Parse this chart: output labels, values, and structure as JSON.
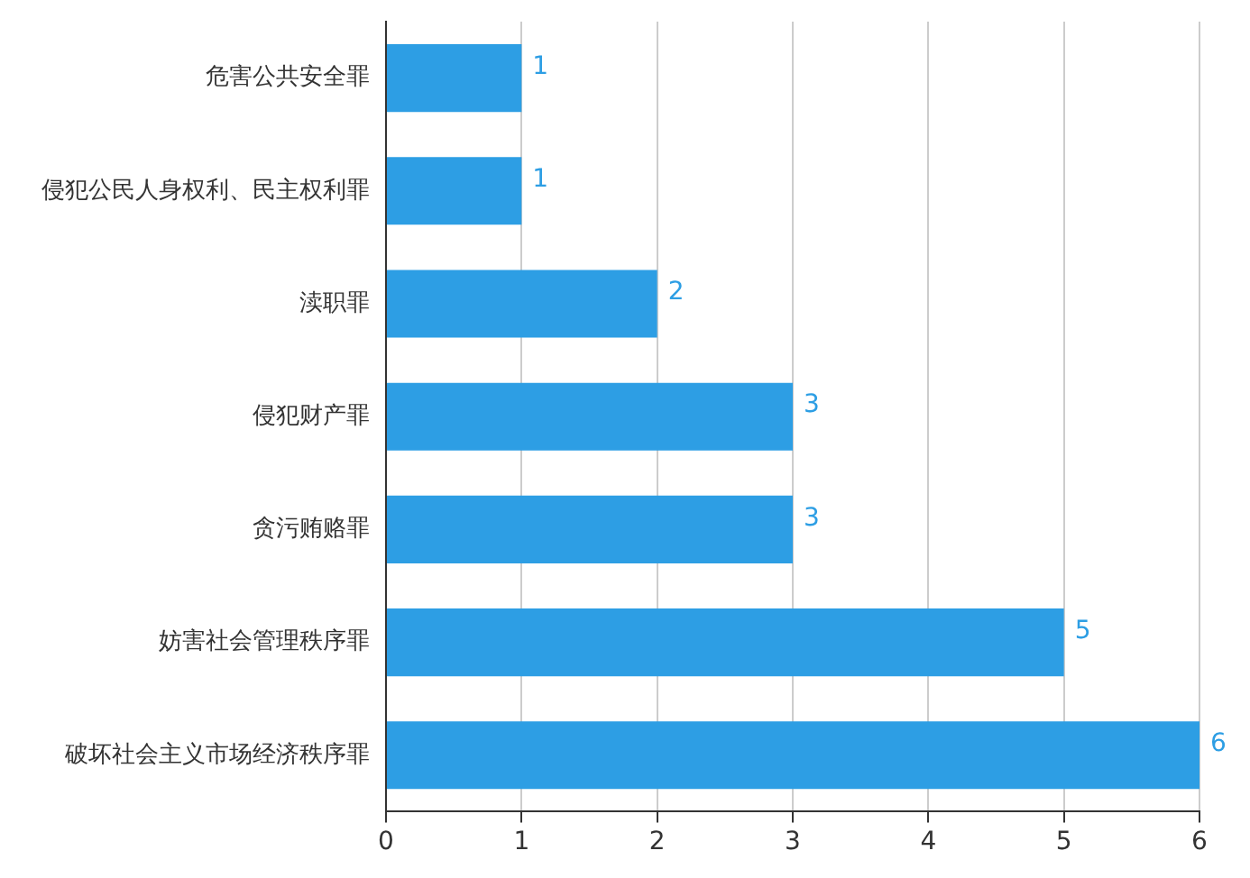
{
  "chart_data": {
    "type": "bar",
    "orientation": "horizontal",
    "categories": [
      "危害公共安全罪",
      "侵犯公民人身权利、民主权利罪",
      "渎职罪",
      "侵犯财产罪",
      "贪污贿赂罪",
      "妨害社会管理秩序罪",
      "破坏社会主义市场经济秩序罪"
    ],
    "values": [
      1,
      1,
      2,
      3,
      3,
      5,
      6
    ],
    "color": "#2d9ee4",
    "xlim": [
      0,
      6
    ],
    "xticks": [
      0,
      1,
      2,
      3,
      4,
      5,
      6
    ],
    "grid": "x",
    "data_labels": true,
    "legend": false
  }
}
